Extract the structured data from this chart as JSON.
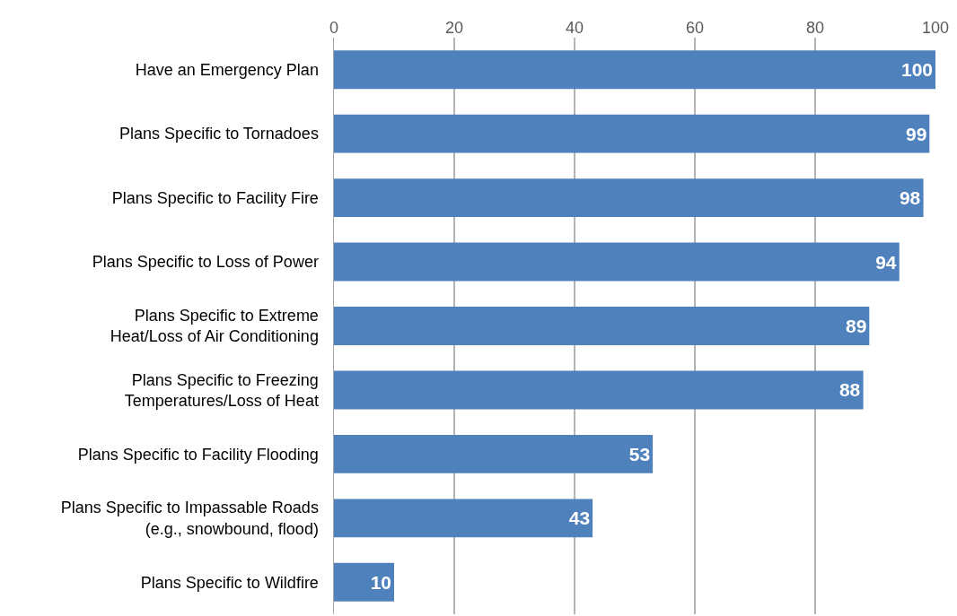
{
  "chart_data": {
    "type": "bar",
    "orientation": "horizontal",
    "categories": [
      "Have an Emergency Plan",
      "Plans Specific to Tornadoes",
      "Plans Specific to Facility Fire",
      "Plans Specific to Loss of Power",
      "Plans Specific to Extreme\nHeat/Loss of Air Conditioning",
      "Plans Specific to Freezing\nTemperatures/Loss of Heat",
      "Plans Specific to Facility Flooding",
      "Plans Specific to Impassable Roads\n(e.g., snowbound, flood)",
      "Plans Specific to Wildfire"
    ],
    "values": [
      100,
      99,
      98,
      94,
      89,
      88,
      53,
      43,
      10
    ],
    "color": "#4f81bd",
    "xlim": [
      0,
      100
    ],
    "xticks": [
      0,
      20,
      40,
      60,
      80,
      100
    ],
    "grid": "x",
    "data_labels": true
  }
}
